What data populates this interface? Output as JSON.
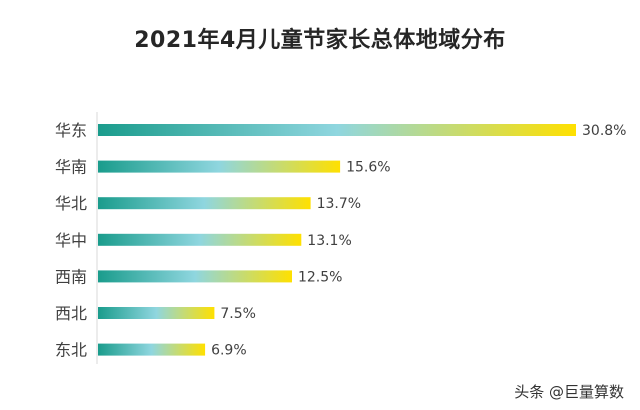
{
  "chart_data": {
    "type": "bar",
    "orientation": "horizontal",
    "title": "2021年4月儿童节家长总体地域分布",
    "categories": [
      "华东",
      "华南",
      "华北",
      "华中",
      "西南",
      "西北",
      "东北"
    ],
    "values": [
      30.8,
      15.6,
      13.7,
      13.1,
      12.5,
      7.5,
      6.9
    ],
    "data_labels": [
      "30.8%",
      "15.6%",
      "13.7%",
      "13.1%",
      "12.5%",
      "7.5%",
      "6.9%"
    ],
    "xlim": [
      0,
      30.8
    ],
    "grid": false,
    "gradient_colors": [
      "#1a9c8c",
      "#8fd6df",
      "#ffe000"
    ],
    "label_color": "#404040"
  },
  "watermark": "头条 @巨量算数"
}
